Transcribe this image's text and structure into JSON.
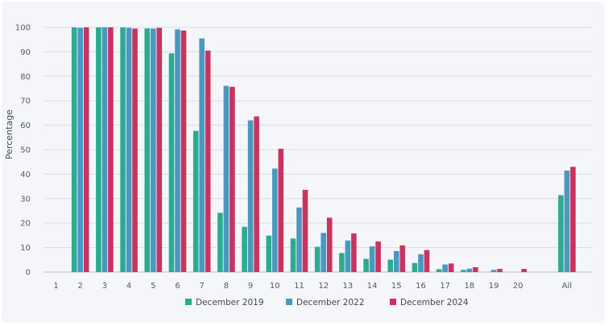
{
  "chart_data": {
    "type": "bar",
    "title": "",
    "xlabel": "",
    "ylabel": "Percentage",
    "ylim": [
      0,
      100
    ],
    "yticks": [
      0,
      10,
      20,
      30,
      40,
      50,
      60,
      70,
      80,
      90,
      100
    ],
    "grid": "horizontal",
    "legend_position": "bottom",
    "categories": [
      "1",
      "2",
      "3",
      "4",
      "5",
      "6",
      "7",
      "8",
      "9",
      "10",
      "11",
      "12",
      "13",
      "14",
      "15",
      "16",
      "17",
      "18",
      "19",
      "20",
      "All"
    ],
    "series": [
      {
        "name": "December 2019",
        "color": "#2bab92",
        "values": [
          0,
          100,
          100,
          100,
          99.6,
          89.4,
          57.7,
          24.2,
          18.5,
          14.9,
          13.7,
          10.3,
          7.8,
          5.4,
          5.1,
          3.7,
          1.2,
          0.9,
          0,
          0,
          31.4
        ]
      },
      {
        "name": "December 2022",
        "color": "#4a98bf",
        "values": [
          0,
          99.8,
          100,
          99.8,
          99.5,
          99.2,
          95.5,
          76.1,
          62.0,
          42.3,
          26.4,
          16.0,
          12.9,
          10.5,
          8.6,
          7.3,
          3.1,
          1.4,
          0.9,
          0,
          41.5
        ]
      },
      {
        "name": "December 2024",
        "color": "#c8345f",
        "values": [
          0,
          100,
          100,
          99.5,
          99.8,
          98.7,
          90.5,
          75.7,
          63.6,
          50.4,
          33.6,
          22.2,
          15.8,
          12.5,
          10.9,
          9.0,
          3.5,
          2.0,
          1.3,
          1.3,
          43.0
        ]
      }
    ]
  }
}
